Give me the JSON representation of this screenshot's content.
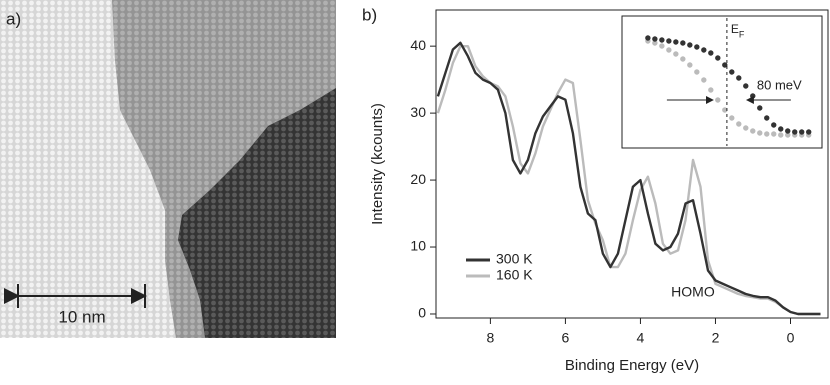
{
  "panel_a": {
    "label": "a)",
    "scale_bar": "10 nm"
  },
  "chart_data": [
    {
      "type": "line",
      "panel_label": "b)",
      "x_label": "Binding Energy (eV)",
      "y_label": "Intensity (kcounts)",
      "x": [
        9.4,
        9.2,
        9.0,
        8.8,
        8.6,
        8.4,
        8.2,
        8.0,
        7.8,
        7.6,
        7.4,
        7.2,
        7.0,
        6.8,
        6.6,
        6.4,
        6.2,
        6.0,
        5.8,
        5.6,
        5.4,
        5.2,
        5.0,
        4.8,
        4.6,
        4.4,
        4.2,
        4.0,
        3.8,
        3.6,
        3.4,
        3.2,
        3.0,
        2.8,
        2.6,
        2.4,
        2.2,
        2.0,
        1.8,
        1.6,
        1.4,
        1.2,
        1.0,
        0.8,
        0.6,
        0.4,
        0.2,
        0.0,
        -0.2,
        -0.4,
        -0.6,
        -0.8
      ],
      "series": [
        {
          "name": "300 K",
          "color": "#333333",
          "values": [
            32.5,
            36,
            39.5,
            40.5,
            38.5,
            36,
            35,
            34.5,
            33.5,
            30,
            23,
            21,
            23,
            27,
            29.5,
            31,
            32.5,
            32,
            27,
            19,
            15,
            14,
            9,
            7,
            9,
            14,
            19,
            20,
            15,
            10.5,
            9.5,
            10,
            12,
            16.5,
            17,
            12,
            6.5,
            5,
            4.5,
            4,
            3.5,
            3,
            2.7,
            2.5,
            2.5,
            2,
            1,
            0.3,
            0,
            0,
            0,
            0
          ]
        },
        {
          "name": "160 K",
          "color": "#bbbbbb",
          "values": [
            30,
            33.5,
            37.5,
            40,
            40,
            37,
            35.5,
            34.5,
            34,
            32.5,
            28,
            22.5,
            21,
            24,
            28,
            30.5,
            33,
            35,
            34.5,
            26,
            17,
            13.5,
            11,
            7,
            7,
            9,
            14,
            18.5,
            20.5,
            16.5,
            10.5,
            9,
            9.5,
            14,
            23,
            19,
            8,
            4.5,
            4,
            3.5,
            3,
            2.7,
            2.5,
            2.3,
            2.3,
            1.8,
            1,
            0.3,
            0,
            0,
            0,
            0
          ]
        }
      ],
      "xlim": [
        9.45,
        -1.0
      ],
      "xticks": [
        8,
        6,
        4,
        2,
        0
      ],
      "ylim": [
        -0.6,
        45.4
      ],
      "yticks": [
        0,
        10,
        20,
        30,
        40
      ],
      "grid": false,
      "legend": "lower left",
      "annotation": {
        "text": "HOMO",
        "x": 2.6,
        "y": 3.2
      }
    },
    {
      "type": "scatter",
      "ef_label": "E",
      "ef_sub": "F",
      "ef_x": 11.3,
      "shift_label": "80 meV",
      "x": [
        0,
        1,
        2,
        3,
        4,
        5,
        6,
        7,
        8,
        9,
        10,
        11,
        12,
        13,
        14,
        15,
        16,
        17,
        18,
        19,
        20,
        21,
        22,
        23
      ],
      "series": [
        {
          "color": "#333333",
          "values": [
            102,
            101,
            100,
            99,
            98,
            97,
            95,
            93,
            90,
            87,
            82,
            75,
            68,
            62,
            54,
            44,
            32,
            22,
            15,
            11,
            9,
            8,
            8,
            8
          ]
        },
        {
          "color": "#bbbbbb",
          "values": [
            99,
            97,
            94,
            90,
            86,
            81,
            75,
            68,
            60,
            50,
            40,
            30,
            22,
            16,
            12,
            9,
            7,
            6,
            6,
            5,
            5,
            5,
            5,
            5
          ]
        }
      ],
      "xlim": [
        -3.7,
        24.9
      ],
      "ylim": [
        0,
        110
      ]
    }
  ]
}
